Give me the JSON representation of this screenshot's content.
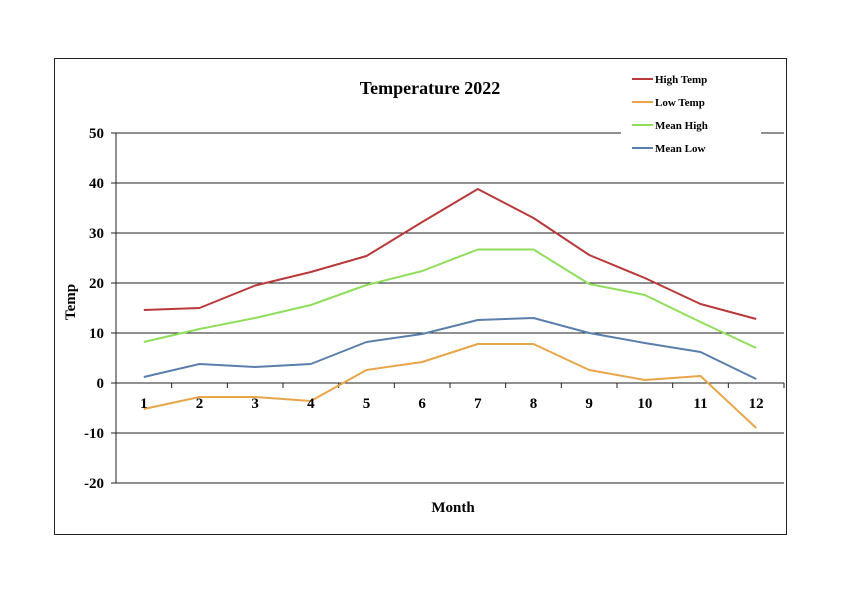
{
  "chart_data": {
    "type": "line",
    "title": "Temperature 2022",
    "xlabel": "Month",
    "ylabel": "Temp",
    "categories": [
      "1",
      "2",
      "3",
      "4",
      "5",
      "6",
      "7",
      "8",
      "9",
      "10",
      "11",
      "12"
    ],
    "ylim": [
      -20,
      50
    ],
    "yticks": [
      -20,
      -10,
      0,
      10,
      20,
      30,
      40,
      50
    ],
    "grid": true,
    "legend_position": "top-right",
    "series": [
      {
        "name": "High Temp",
        "color": "#b83a3a",
        "values": [
          14.6,
          15.0,
          19.5,
          22.2,
          25.4,
          32.2,
          38.8,
          33.0,
          25.6,
          21.0,
          15.8,
          12.8
        ]
      },
      {
        "name": "Low Temp",
        "color": "#e8a54a",
        "values": [
          -5.2,
          -2.8,
          -2.8,
          -3.6,
          2.6,
          4.2,
          7.8,
          7.8,
          2.6,
          0.6,
          1.4,
          -9.0
        ]
      },
      {
        "name": "Mean High",
        "color": "#8fde5c",
        "values": [
          8.2,
          10.8,
          13.0,
          15.6,
          19.6,
          22.4,
          26.7,
          26.7,
          19.8,
          17.6,
          12.2,
          7.0
        ]
      },
      {
        "name": "Mean Low",
        "color": "#5b7fac",
        "values": [
          1.2,
          3.8,
          3.2,
          3.8,
          8.2,
          9.8,
          12.6,
          13.0,
          10.0,
          8.0,
          6.2,
          0.8
        ]
      }
    ]
  }
}
